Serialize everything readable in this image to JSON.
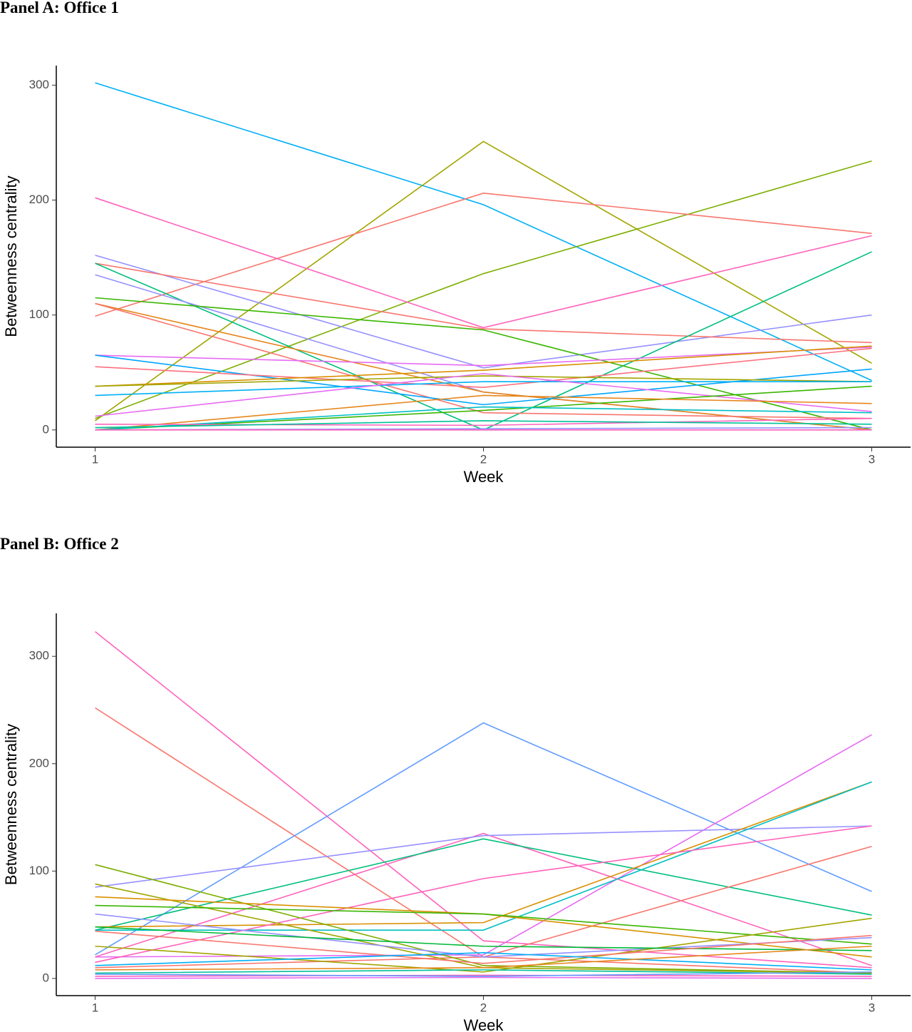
{
  "chart_data": [
    {
      "type": "line",
      "title": "Panel A: Office 1",
      "x_label": "Week",
      "y_label": "Betweenness centrality",
      "x": [
        1,
        2,
        3
      ],
      "xlim": [
        0.9,
        3.1
      ],
      "xticks": [
        1,
        2,
        3
      ],
      "ylim": [
        -15,
        317
      ],
      "yticks": [
        0,
        100,
        200,
        300
      ],
      "series": [
        {
          "color": "#00b0f6",
          "values": [
            302,
            196,
            43
          ]
        },
        {
          "color": "#a3a500",
          "values": [
            8,
            251,
            58
          ]
        },
        {
          "color": "#7cae00",
          "values": [
            10,
            136,
            234
          ]
        },
        {
          "color": "#f8766d",
          "values": [
            99,
            206,
            171
          ]
        },
        {
          "color": "#ff62bc",
          "values": [
            202,
            89,
            169
          ]
        },
        {
          "color": "#9590ff",
          "values": [
            152,
            54,
            100
          ]
        },
        {
          "color": "#f8766d",
          "values": [
            145,
            88,
            76
          ]
        },
        {
          "color": "#00bf7d",
          "values": [
            145,
            0,
            155
          ]
        },
        {
          "color": "#9590ff",
          "values": [
            135,
            33,
            0
          ]
        },
        {
          "color": "#39b600",
          "values": [
            115,
            87,
            0
          ]
        },
        {
          "color": "#e7861b",
          "values": [
            110,
            33,
            0
          ]
        },
        {
          "color": "#f8766d",
          "values": [
            110,
            15,
            10
          ]
        },
        {
          "color": "#e76bf3",
          "values": [
            65,
            56,
            72
          ]
        },
        {
          "color": "#00a5ff",
          "values": [
            65,
            22,
            53
          ]
        },
        {
          "color": "#fc717f",
          "values": [
            55,
            37,
            71
          ]
        },
        {
          "color": "#d89000",
          "values": [
            38,
            52,
            73
          ]
        },
        {
          "color": "#a3a500",
          "values": [
            38,
            47,
            42
          ]
        },
        {
          "color": "#00b0f6",
          "values": [
            30,
            42,
            42
          ]
        },
        {
          "color": "#e76bf3",
          "values": [
            12,
            49,
            16
          ]
        },
        {
          "color": "#39b600",
          "values": [
            0,
            17,
            38
          ]
        },
        {
          "color": "#e7861b",
          "values": [
            0,
            30,
            23
          ]
        },
        {
          "color": "#00bfc4",
          "values": [
            0,
            20,
            15
          ]
        },
        {
          "color": "#ff62bc",
          "values": [
            5,
            4,
            10
          ]
        },
        {
          "color": "#00c19a",
          "values": [
            2,
            8,
            5
          ]
        },
        {
          "color": "#9590ff",
          "values": [
            0,
            1,
            2
          ]
        },
        {
          "color": "#ff62bc",
          "values": [
            0,
            0,
            0
          ]
        }
      ]
    },
    {
      "type": "line",
      "title": "Panel B: Office 2",
      "x_label": "Week",
      "y_label": "Betweenness centrality",
      "x": [
        1,
        2,
        3
      ],
      "xlim": [
        0.9,
        3.1
      ],
      "xticks": [
        1,
        2,
        3
      ],
      "ylim": [
        -16,
        340
      ],
      "yticks": [
        0,
        100,
        200,
        300
      ],
      "series": [
        {
          "color": "#ff62bc",
          "values": [
            323,
            35,
            10
          ]
        },
        {
          "color": "#f8766d",
          "values": [
            252,
            20,
            5
          ]
        },
        {
          "color": "#619cff",
          "values": [
            22,
            238,
            81
          ]
        },
        {
          "color": "#e76bf3",
          "values": [
            20,
            22,
            227
          ]
        },
        {
          "color": "#ff62bc",
          "values": [
            20,
            135,
            12
          ]
        },
        {
          "color": "#9590ff",
          "values": [
            85,
            133,
            142
          ]
        },
        {
          "color": "#00bf7d",
          "values": [
            45,
            130,
            59
          ]
        },
        {
          "color": "#d89000",
          "values": [
            48,
            52,
            183
          ]
        },
        {
          "color": "#00bfc4",
          "values": [
            45,
            45,
            183
          ]
        },
        {
          "color": "#ff62bc",
          "values": [
            15,
            93,
            142
          ]
        },
        {
          "color": "#f8766d",
          "values": [
            10,
            20,
            123
          ]
        },
        {
          "color": "#7cae00",
          "values": [
            106,
            12,
            5
          ]
        },
        {
          "color": "#a3a500",
          "values": [
            88,
            10,
            5
          ]
        },
        {
          "color": "#d89000",
          "values": [
            76,
            60,
            20
          ]
        },
        {
          "color": "#39b600",
          "values": [
            68,
            60,
            32
          ]
        },
        {
          "color": "#9590ff",
          "values": [
            60,
            20,
            38
          ]
        },
        {
          "color": "#a3a500",
          "values": [
            30,
            6,
            56
          ]
        },
        {
          "color": "#00ba38",
          "values": [
            48,
            30,
            26
          ]
        },
        {
          "color": "#f8766d",
          "values": [
            44,
            14,
            40
          ]
        },
        {
          "color": "#00b0f6",
          "values": [
            12,
            24,
            8
          ]
        },
        {
          "color": "#e7861b",
          "values": [
            8,
            10,
            30
          ]
        },
        {
          "color": "#00c19a",
          "values": [
            5,
            8,
            4
          ]
        },
        {
          "color": "#ff62bc",
          "values": [
            2,
            3,
            2
          ]
        },
        {
          "color": "#619cff",
          "values": [
            4,
            2,
            6
          ]
        },
        {
          "color": "#e76bf3",
          "values": [
            0,
            1,
            0
          ]
        }
      ]
    }
  ]
}
